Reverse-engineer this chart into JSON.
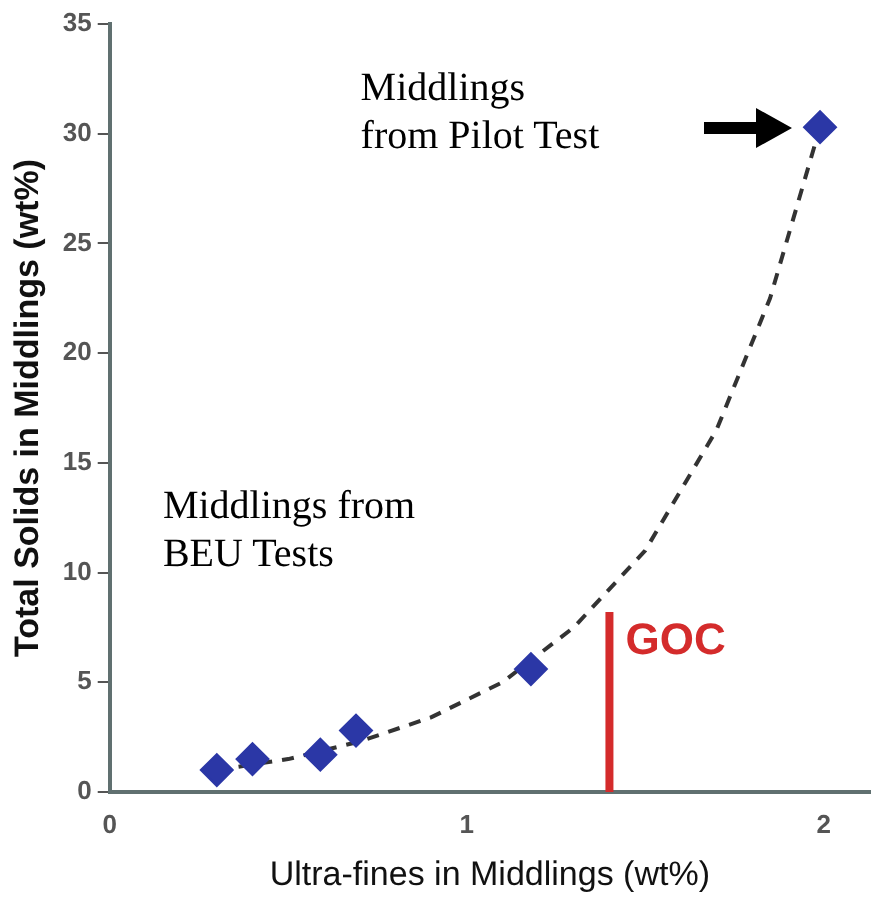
{
  "chart_data": {
    "type": "scatter",
    "xlabel": "Ultra-fines in Middlings (wt%)",
    "ylabel": "Total Solids in Middlings (wt%)",
    "xlim": [
      0,
      2.13
    ],
    "xticks": [
      0,
      1,
      2
    ],
    "ylim": [
      0,
      35
    ],
    "yticks": [
      0,
      5,
      10,
      15,
      20,
      25,
      30,
      35
    ],
    "grid": false,
    "legend": false,
    "marker": "diamond",
    "series": [
      {
        "color": "#2b37a6",
        "x": [
          0.3,
          0.4,
          0.59,
          0.69,
          1.18,
          1.99
        ],
        "values": [
          1.0,
          1.5,
          1.7,
          2.8,
          5.6,
          30.3
        ]
      },
      {
        "type": "line",
        "color": "#333333",
        "line_style": "dashed",
        "marker": "none",
        "x": [
          0.3,
          0.5,
          0.7,
          0.9,
          1.1,
          1.3,
          1.5,
          1.7,
          1.85,
          1.99
        ],
        "values": [
          1.0,
          1.5,
          2.3,
          3.4,
          5.0,
          7.5,
          11,
          16.5,
          22.5,
          30.3
        ]
      },
      {
        "type": "line",
        "name": "GOC",
        "color": "#d42b2b",
        "line_style": "solid",
        "marker": "none",
        "x": [
          1.4,
          1.4
        ],
        "values": [
          0,
          8.2
        ]
      }
    ],
    "annotations": [
      "Middlings\nfrom Pilot Test",
      "Middlings from\nBEU Tests"
    ]
  }
}
